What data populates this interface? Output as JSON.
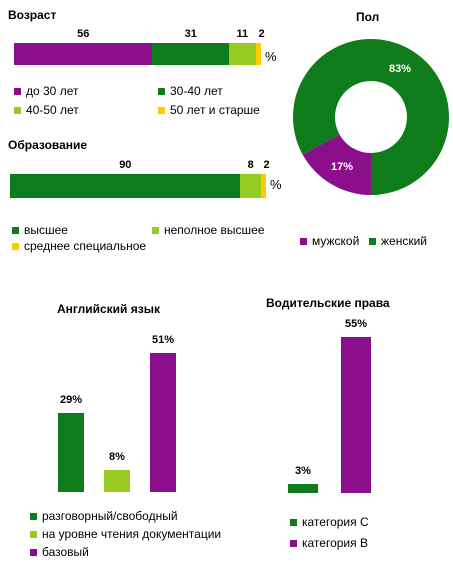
{
  "colors": {
    "purple": "#8B0E8B",
    "green": "#0E7C1A",
    "lime": "#99CC22",
    "yellow": "#FFCC00"
  },
  "chart_data": [
    {
      "type": "bar",
      "orientation": "horizontal-stacked",
      "title": "Возраст",
      "unit": "%",
      "series": [
        {
          "name": "до 30 лет",
          "value": 56,
          "color": "purple"
        },
        {
          "name": "30-40  лет",
          "value": 31,
          "color": "green"
        },
        {
          "name": "40-50  лет",
          "value": 11,
          "color": "lime"
        },
        {
          "name": "50 лет и старше",
          "value": 2,
          "color": "yellow"
        }
      ]
    },
    {
      "type": "bar",
      "orientation": "horizontal-stacked",
      "title": "Образование",
      "unit": "%",
      "series": [
        {
          "name": "высшее",
          "value": 90,
          "color": "green"
        },
        {
          "name": "неполное высшее",
          "value": 8,
          "color": "lime"
        },
        {
          "name": "среднее специальное",
          "value": 2,
          "color": "yellow"
        }
      ]
    },
    {
      "type": "pie",
      "title": "Пол",
      "slices": [
        {
          "name": "мужской",
          "value": 17,
          "label": "17%",
          "color": "purple"
        },
        {
          "name": "женский",
          "value": 83,
          "label": "83%",
          "color": "green"
        }
      ]
    },
    {
      "type": "bar",
      "title": "Английский язык",
      "categories": [
        "разговорный/свободный",
        "на уровне чтения документации",
        "базовый"
      ],
      "values": [
        29,
        8,
        51
      ],
      "labels": [
        "29%",
        "8%",
        "51%"
      ],
      "colors": [
        "green",
        "lime",
        "purple"
      ]
    },
    {
      "type": "bar",
      "title": "Водительские права",
      "categories": [
        "категория С",
        "категория B"
      ],
      "values": [
        3,
        55
      ],
      "labels": [
        "3%",
        "55%"
      ],
      "colors": [
        "green",
        "purple"
      ]
    }
  ]
}
